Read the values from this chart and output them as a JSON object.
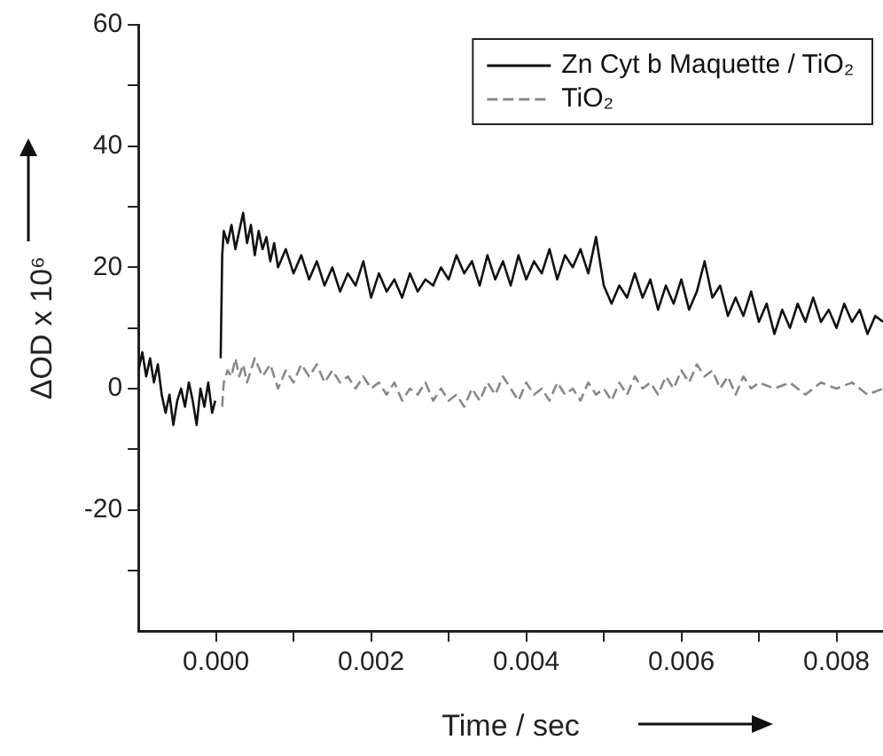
{
  "chart_data": {
    "type": "line",
    "xlabel": "Time / sec",
    "ylabel": "ΔOD x 10⁶",
    "xlim": [
      -0.001,
      0.0086
    ],
    "ylim": [
      -40,
      60
    ],
    "xticks": [
      {
        "value": 0,
        "label": "0.000"
      },
      {
        "value": 0.001,
        "label": null
      },
      {
        "value": 0.002,
        "label": "0.002"
      },
      {
        "value": 0.003,
        "label": null
      },
      {
        "value": 0.004,
        "label": "0.004"
      },
      {
        "value": 0.005,
        "label": null
      },
      {
        "value": 0.006,
        "label": "0.006"
      },
      {
        "value": 0.007,
        "label": null
      },
      {
        "value": 0.008,
        "label": "0.008"
      }
    ],
    "yticks": [
      {
        "value": -30,
        "label": null
      },
      -20,
      {
        "value": -10,
        "label": null
      },
      0,
      {
        "value": 10,
        "label": null
      },
      20,
      {
        "value": 30,
        "label": null
      },
      40,
      {
        "value": 50,
        "label": null
      },
      60
    ],
    "grid": false,
    "legend": "top right",
    "marker": "none",
    "series": [
      {
        "name": "Zn Cyt b Maquette / TiO₂",
        "color": "#111111",
        "line_style": "solid",
        "x": [
          -0.001,
          -0.00095,
          -0.0009,
          -0.00085,
          -0.0008,
          -0.00075,
          -0.0007,
          -0.00065,
          -0.0006,
          -0.00055,
          -0.0005,
          -0.00045,
          -0.0004,
          -0.00035,
          -0.0003,
          -0.00025,
          -0.0002,
          -0.00015,
          -0.0001,
          -5e-05,
          -1e-05,
          1e-05,
          4e-05,
          6e-05,
          8e-05,
          0.0001,
          0.00015,
          0.0002,
          0.00025,
          0.0003,
          0.00035,
          0.0004,
          0.00045,
          0.0005,
          0.00055,
          0.0006,
          0.00065,
          0.0007,
          0.00075,
          0.0008,
          0.0009,
          0.001,
          0.0011,
          0.0012,
          0.0013,
          0.0014,
          0.0015,
          0.0016,
          0.0017,
          0.0018,
          0.0019,
          0.002,
          0.0021,
          0.0022,
          0.0023,
          0.0024,
          0.0025,
          0.0026,
          0.0027,
          0.0028,
          0.0029,
          0.003,
          0.0031,
          0.0032,
          0.0033,
          0.0034,
          0.0035,
          0.0036,
          0.0037,
          0.0038,
          0.0039,
          0.004,
          0.0041,
          0.0042,
          0.0043,
          0.0044,
          0.0045,
          0.0046,
          0.0047,
          0.0048,
          0.0049,
          0.005,
          0.0051,
          0.0052,
          0.0053,
          0.0054,
          0.0055,
          0.0056,
          0.0057,
          0.0058,
          0.0059,
          0.006,
          0.0061,
          0.0062,
          0.0063,
          0.0064,
          0.0065,
          0.0066,
          0.0067,
          0.0068,
          0.0069,
          0.007,
          0.0071,
          0.0072,
          0.0073,
          0.0074,
          0.0075,
          0.0076,
          0.0077,
          0.0078,
          0.0079,
          0.008,
          0.0081,
          0.0082,
          0.0083,
          0.0084,
          0.0085,
          0.0086
        ],
        "values": [
          3,
          6,
          2,
          5,
          1,
          4,
          -1,
          -4,
          -1,
          -6,
          -2,
          0,
          -3,
          1,
          -2,
          -6,
          0,
          -3,
          1,
          -4,
          -2,
          null,
          null,
          5,
          22,
          26,
          24,
          27,
          23,
          26,
          29,
          24,
          27,
          22,
          26,
          23,
          25,
          21,
          24,
          20,
          23,
          19,
          22,
          18,
          21,
          17,
          20,
          16,
          19,
          17,
          21,
          15,
          19,
          16,
          18,
          15,
          19,
          16,
          18,
          17,
          20,
          18,
          22,
          19,
          21,
          17,
          22,
          18,
          21,
          17,
          22,
          18,
          21,
          19,
          23,
          18,
          22,
          20,
          23,
          19,
          25,
          17,
          14,
          17,
          15,
          19,
          15,
          18,
          13,
          17,
          14,
          18,
          13,
          16,
          21,
          15,
          17,
          12,
          15,
          12,
          16,
          11,
          14,
          9,
          13,
          10,
          14,
          11,
          15,
          11,
          13,
          10,
          14,
          11,
          13,
          9,
          12,
          11
        ]
      },
      {
        "name": "TiO₂",
        "color": "#888888",
        "line_style": "dashed",
        "x": [
          8e-05,
          0.0001,
          0.00015,
          0.0002,
          0.00025,
          0.0003,
          0.00035,
          0.0004,
          0.0005,
          0.0006,
          0.0007,
          0.0008,
          0.0009,
          0.001,
          0.0011,
          0.0012,
          0.0013,
          0.0014,
          0.0015,
          0.0016,
          0.0017,
          0.0018,
          0.0019,
          0.002,
          0.0021,
          0.0022,
          0.0023,
          0.0024,
          0.0025,
          0.0026,
          0.0027,
          0.0028,
          0.0029,
          0.003,
          0.0031,
          0.0032,
          0.0033,
          0.0034,
          0.0035,
          0.0036,
          0.0037,
          0.0038,
          0.0039,
          0.004,
          0.0041,
          0.0042,
          0.0043,
          0.0044,
          0.0045,
          0.0046,
          0.0047,
          0.0048,
          0.0049,
          0.005,
          0.0051,
          0.0052,
          0.0053,
          0.0054,
          0.0055,
          0.0056,
          0.0057,
          0.0058,
          0.0059,
          0.006,
          0.0061,
          0.0062,
          0.0063,
          0.0064,
          0.0065,
          0.0066,
          0.0067,
          0.0068,
          0.0069,
          0.007,
          0.0072,
          0.0074,
          0.0076,
          0.0078,
          0.008,
          0.0082,
          0.0084,
          0.0086
        ],
        "values": [
          -3,
          1,
          3,
          2,
          5,
          2,
          4,
          1,
          5,
          2,
          4,
          0,
          3,
          1,
          4,
          2,
          4,
          1,
          3,
          1,
          2,
          0,
          2,
          0,
          1,
          -1,
          1,
          -2,
          0,
          -1,
          1,
          -2,
          0,
          -2,
          -1,
          -3,
          0,
          -2,
          1,
          -1,
          2,
          0,
          -2,
          1,
          -1,
          0,
          -2,
          1,
          -1,
          0,
          -2,
          1,
          -1,
          0,
          -2,
          1,
          -1,
          2,
          0,
          1,
          -1,
          2,
          0,
          3,
          1,
          4,
          2,
          3,
          0,
          2,
          -1,
          2,
          0,
          1,
          0,
          1,
          -1,
          1,
          0,
          1,
          -1,
          0
        ]
      }
    ]
  }
}
